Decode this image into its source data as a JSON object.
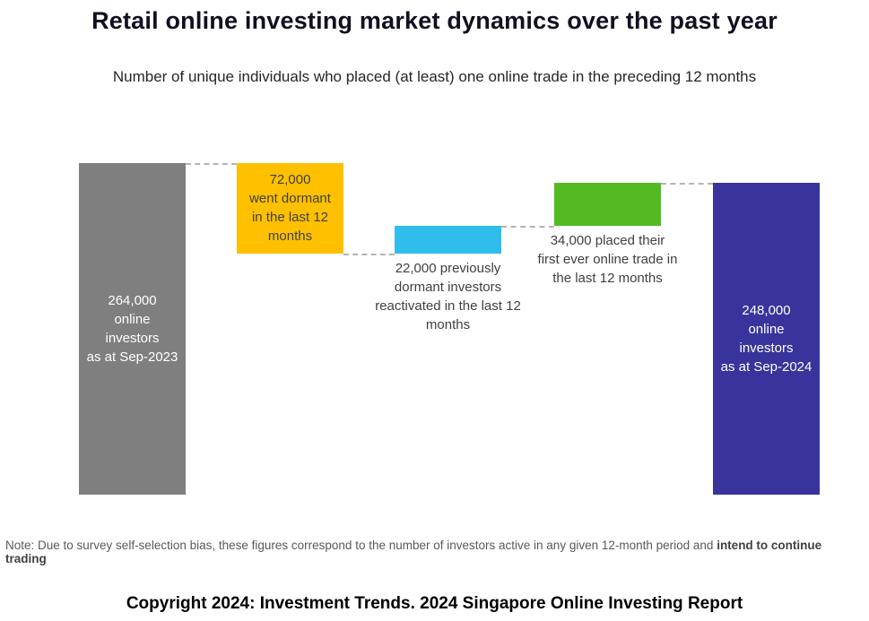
{
  "page": {
    "title": "Retail online investing market dynamics over the past year",
    "subtitle": "Number of unique individuals who placed (at least) one online trade in the preceding 12 months",
    "note_regular": "Note: Due to survey self-selection bias, these figures correspond to the number of investors active in any given 12-month period and ",
    "note_bold": "intend to continue trading",
    "footer": "Copyright 2024: Investment Trends. 2024 Singapore Online Investing Report"
  },
  "chart_data": {
    "type": "bar",
    "variant": "waterfall",
    "title": "Retail online investing market dynamics over the past year",
    "subtitle": "Number of unique individuals who placed (at least) one online trade in the preceding 12 months",
    "unit": "unique online investors",
    "ylim": [
      0,
      264000
    ],
    "grid": false,
    "legend": false,
    "connector_color": "#b3b3b3",
    "bars": [
      {
        "name": "bar-online-investors-sep-2023",
        "kind": "total",
        "value": 264000,
        "start": 0,
        "end": 264000,
        "color": "#7f7f7f",
        "label": "264,000\nonline\ninvestors\nas at Sep-2023",
        "label_position": "inside",
        "label_color": "#ffffff"
      },
      {
        "name": "bar-went-dormant",
        "kind": "decrease",
        "value": -72000,
        "start": 264000,
        "end": 192000,
        "color": "#ffc000",
        "label": "72,000\nwent dormant\nin the last 12\nmonths",
        "label_position": "inside",
        "label_color": "#404040"
      },
      {
        "name": "bar-reactivated-investors",
        "kind": "increase",
        "value": 22000,
        "start": 192000,
        "end": 214000,
        "color": "#2fbeec",
        "label": "22,000 previously\ndormant investors\nreactivated in the last 12\nmonths",
        "label_position": "below",
        "label_color": "#404040"
      },
      {
        "name": "bar-first-ever-trade",
        "kind": "increase",
        "value": 34000,
        "start": 214000,
        "end": 248000,
        "color": "#54ba21",
        "label": "34,000 placed their\nfirst ever online trade in\nthe last 12 months",
        "label_position": "below",
        "label_color": "#404040"
      },
      {
        "name": "bar-online-investors-sep-2024",
        "kind": "total",
        "value": 248000,
        "start": 0,
        "end": 248000,
        "color": "#38349b",
        "label": "248,000\nonline\ninvestors\nas at Sep-2024",
        "label_position": "inside",
        "label_color": "#ffffff"
      }
    ]
  }
}
